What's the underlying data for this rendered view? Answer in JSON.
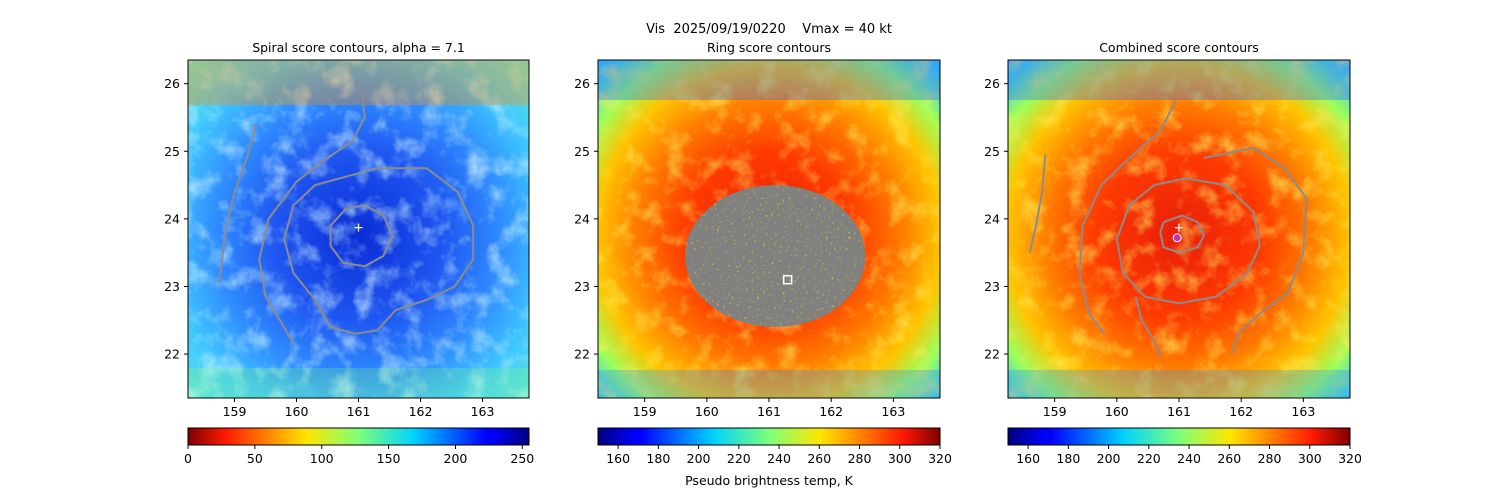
{
  "suptitle": {
    "line1": "Vis  2025/09/19/0220    Vmax = 40 kt"
  },
  "chart_data": [
    {
      "type": "heatmap",
      "title": "Spiral score contours, alpha =  7.1",
      "xlim": [
        158.25,
        163.75
      ],
      "ylim": [
        21.35,
        26.35
      ],
      "x_ticks": [
        159,
        160,
        161,
        162,
        163
      ],
      "y_ticks": [
        22,
        23,
        24,
        25,
        26
      ],
      "colormap": "jet_r",
      "colorbar": {
        "range": [
          0,
          255
        ],
        "ticks": [
          0,
          50,
          100,
          150,
          200,
          250
        ],
        "label": ""
      },
      "markers": [
        {
          "type": "plus",
          "x": 161.0,
          "y": 23.87,
          "color": "#ffffff"
        }
      ],
      "contours": [
        {
          "name": "inner",
          "color": "#8c8c8c",
          "points": [
            [
              160.8,
              24.15
            ],
            [
              161.1,
              24.2
            ],
            [
              161.4,
              24.05
            ],
            [
              161.55,
              23.75
            ],
            [
              161.4,
              23.45
            ],
            [
              161.1,
              23.3
            ],
            [
              160.75,
              23.35
            ],
            [
              160.55,
              23.6
            ],
            [
              160.55,
              23.9
            ],
            [
              160.8,
              24.15
            ]
          ]
        },
        {
          "name": "middle",
          "color": "#8c8c8c",
          "points": [
            [
              160.7,
              24.6
            ],
            [
              161.3,
              24.75
            ],
            [
              162.1,
              24.75
            ],
            [
              162.6,
              24.4
            ],
            [
              162.85,
              23.9
            ],
            [
              162.85,
              23.4
            ],
            [
              162.55,
              23.0
            ],
            [
              162.1,
              22.8
            ],
            [
              161.6,
              22.65
            ],
            [
              161.3,
              22.35
            ],
            [
              160.95,
              22.3
            ],
            [
              160.55,
              22.4
            ],
            [
              160.3,
              22.8
            ],
            [
              159.95,
              23.2
            ],
            [
              159.8,
              23.7
            ],
            [
              159.95,
              24.2
            ],
            [
              160.3,
              24.5
            ],
            [
              160.7,
              24.6
            ]
          ]
        },
        {
          "name": "spiral-arm",
          "color": "#8c8c8c",
          "points": [
            [
              161.05,
              25.9
            ],
            [
              161.1,
              25.5
            ],
            [
              160.9,
              25.15
            ],
            [
              160.5,
              24.9
            ],
            [
              160.0,
              24.55
            ],
            [
              159.55,
              24.0
            ],
            [
              159.4,
              23.4
            ],
            [
              159.5,
              22.85
            ],
            [
              159.8,
              22.4
            ],
            [
              159.95,
              22.15
            ]
          ]
        },
        {
          "name": "outer-band",
          "color": "#8c8c8c",
          "points": [
            [
              159.35,
              25.4
            ],
            [
              159.2,
              24.9
            ],
            [
              159.0,
              24.4
            ],
            [
              158.85,
              23.8
            ],
            [
              158.8,
              23.4
            ],
            [
              158.75,
              23.05
            ]
          ]
        }
      ]
    },
    {
      "type": "heatmap",
      "title": "Ring score contours",
      "xlim": [
        158.25,
        163.75
      ],
      "ylim": [
        21.35,
        26.35
      ],
      "x_ticks": [
        159,
        160,
        161,
        162,
        163
      ],
      "y_ticks": [
        22,
        23,
        24,
        25,
        26
      ],
      "colormap": "jet",
      "colorbar": {
        "range": [
          150,
          320
        ],
        "ticks": [
          160,
          180,
          200,
          220,
          240,
          260,
          280,
          300,
          320
        ],
        "label": "Pseudo brightness temp, K"
      },
      "markers": [
        {
          "type": "square",
          "x": 161.3,
          "y": 23.1,
          "color": "#ffffff"
        }
      ],
      "masked_region": {
        "color": "#808080",
        "center": [
          161.1,
          23.45
        ],
        "radius_x": 1.45,
        "radius_y": 1.05
      },
      "contours": []
    },
    {
      "type": "heatmap",
      "title": "Combined score contours",
      "xlim": [
        158.25,
        163.75
      ],
      "ylim": [
        21.35,
        26.35
      ],
      "x_ticks": [
        159,
        160,
        161,
        162,
        163
      ],
      "y_ticks": [
        22,
        23,
        24,
        25,
        26
      ],
      "colormap": "jet",
      "colorbar": {
        "range": [
          150,
          320
        ],
        "ticks": [
          160,
          180,
          200,
          220,
          240,
          260,
          280,
          300,
          320
        ],
        "label": ""
      },
      "markers": [
        {
          "type": "plus",
          "x": 161.0,
          "y": 23.87,
          "color": "#ffffff"
        },
        {
          "type": "circle",
          "x": 160.97,
          "y": 23.72,
          "color": "#cc33aa"
        }
      ],
      "contours": [
        {
          "name": "inner",
          "color": "#8c8c8c",
          "points": [
            [
              160.75,
              23.95
            ],
            [
              161.05,
              24.05
            ],
            [
              161.3,
              23.95
            ],
            [
              161.4,
              23.75
            ],
            [
              161.3,
              23.58
            ],
            [
              161.0,
              23.5
            ],
            [
              160.75,
              23.58
            ],
            [
              160.7,
              23.8
            ],
            [
              160.75,
              23.95
            ]
          ]
        },
        {
          "name": "middle",
          "color": "#8c8c8c",
          "points": [
            [
              160.6,
              24.5
            ],
            [
              161.1,
              24.6
            ],
            [
              161.75,
              24.5
            ],
            [
              162.2,
              24.1
            ],
            [
              162.3,
              23.6
            ],
            [
              162.1,
              23.2
            ],
            [
              161.6,
              22.85
            ],
            [
              161.0,
              22.75
            ],
            [
              160.45,
              22.85
            ],
            [
              160.1,
              23.2
            ],
            [
              160.0,
              23.7
            ],
            [
              160.2,
              24.2
            ],
            [
              160.6,
              24.5
            ]
          ]
        },
        {
          "name": "outer",
          "color": "#8c8c8c",
          "points": [
            [
              160.95,
              25.75
            ],
            [
              160.7,
              25.3
            ],
            [
              160.2,
              24.9
            ],
            [
              159.75,
              24.5
            ],
            [
              159.45,
              23.9
            ],
            [
              159.4,
              23.2
            ],
            [
              159.55,
              22.6
            ],
            [
              159.8,
              22.3
            ]
          ]
        },
        {
          "name": "east-arc",
          "color": "#8c8c8c",
          "points": [
            [
              161.4,
              24.9
            ],
            [
              162.2,
              25.05
            ],
            [
              162.7,
              24.75
            ],
            [
              163.05,
              24.3
            ],
            [
              163.0,
              23.5
            ],
            [
              162.75,
              22.9
            ],
            [
              162.3,
              22.6
            ],
            [
              161.95,
              22.3
            ],
            [
              161.85,
              22.0
            ]
          ]
        },
        {
          "name": "west-band",
          "color": "#8c8c8c",
          "points": [
            [
              158.85,
              24.95
            ],
            [
              158.8,
              24.4
            ],
            [
              158.7,
              23.9
            ],
            [
              158.6,
              23.5
            ]
          ]
        },
        {
          "name": "south-arm",
          "color": "#8c8c8c",
          "points": [
            [
              160.3,
              22.85
            ],
            [
              160.4,
              22.5
            ],
            [
              160.6,
              22.2
            ],
            [
              160.7,
              21.95
            ]
          ]
        }
      ]
    }
  ]
}
